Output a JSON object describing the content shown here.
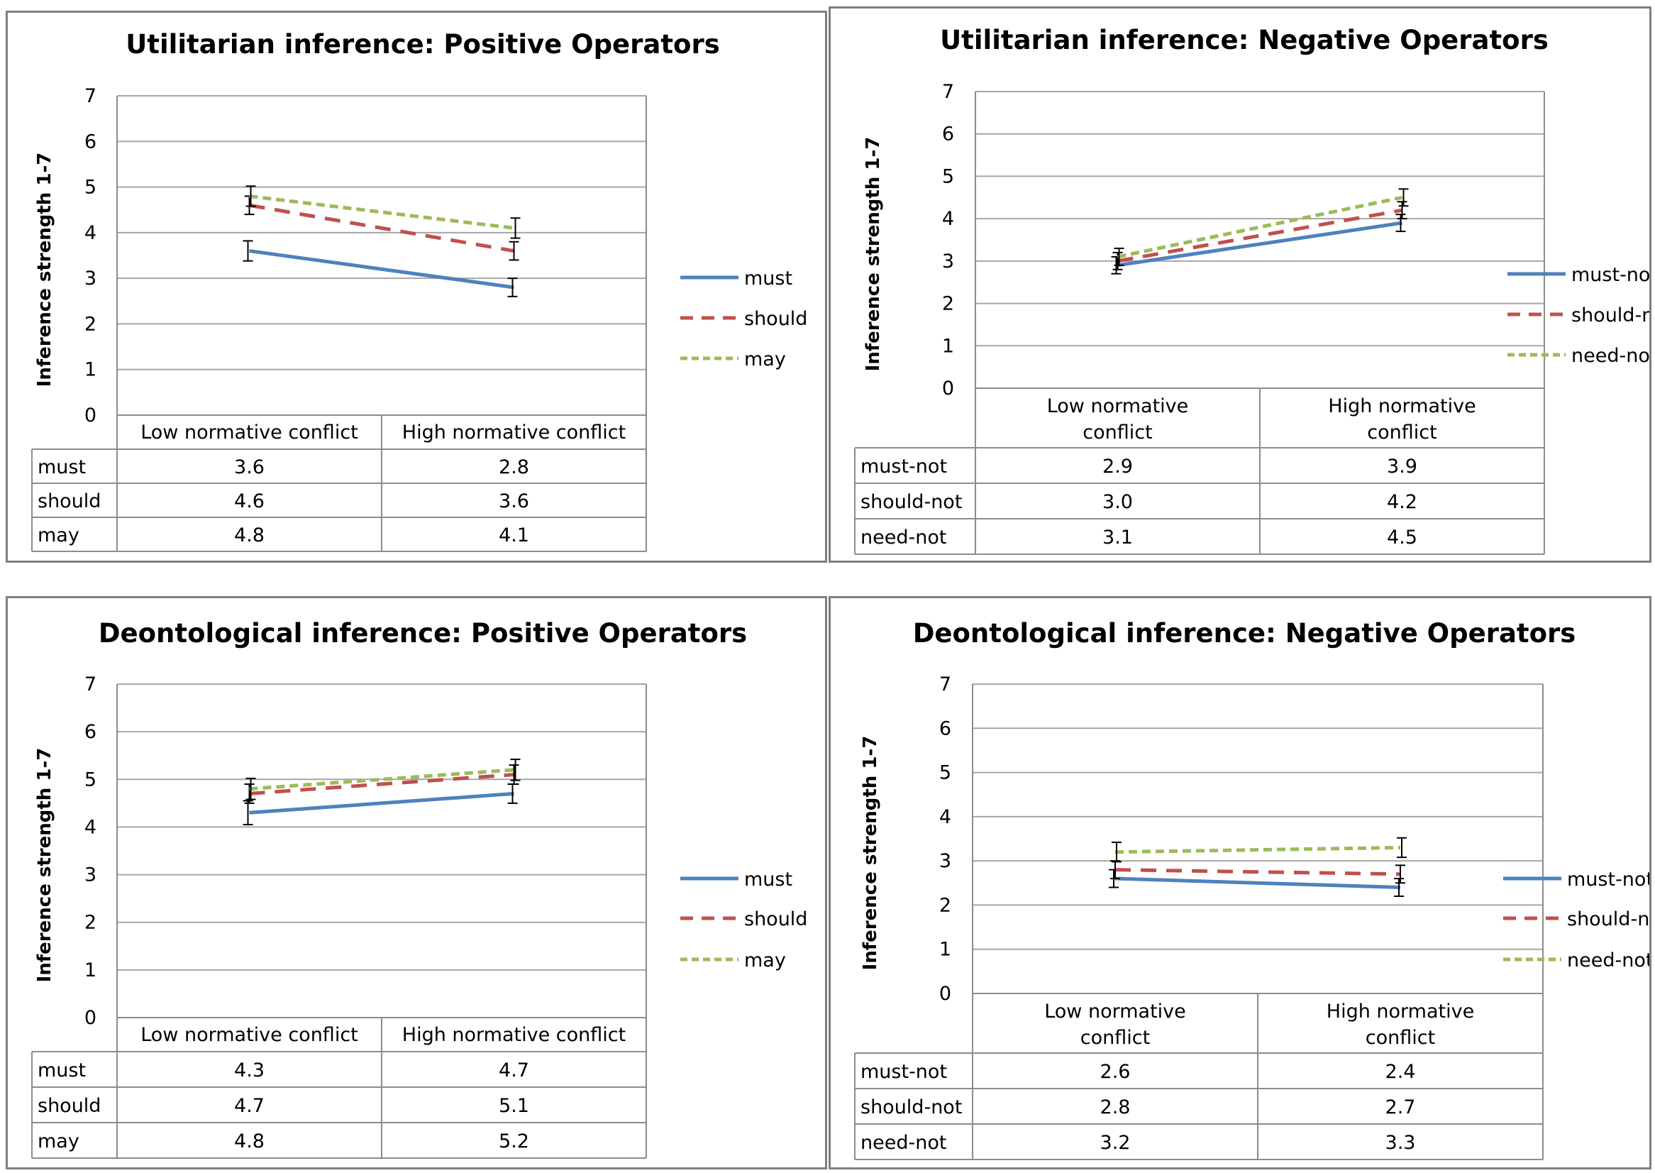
{
  "colors": {
    "series1": "#4f81bd",
    "series2": "#c0504d",
    "series3": "#9bbb59"
  },
  "chart_data": [
    {
      "type": "line",
      "title": "Utilitarian inference: Positive Operators",
      "ylabel": "Inference strength 1-7",
      "ylim": [
        0,
        7
      ],
      "yticks": [
        "0",
        "1",
        "2",
        "3",
        "4",
        "5",
        "6",
        "7"
      ],
      "categories": [
        "Low normative conflict",
        "High normative conflict"
      ],
      "series": [
        {
          "name": "must",
          "values": [
            3.6,
            2.8
          ],
          "labels": [
            "3.6",
            "2.8"
          ],
          "err": [
            0.22,
            0.2
          ]
        },
        {
          "name": "should",
          "values": [
            4.6,
            3.6
          ],
          "labels": [
            "4.6",
            "3.6"
          ],
          "err": [
            0.2,
            0.2
          ]
        },
        {
          "name": "may",
          "values": [
            4.8,
            4.1
          ],
          "labels": [
            "4.8",
            "4.1"
          ],
          "err": [
            0.22,
            0.22
          ]
        }
      ]
    },
    {
      "type": "line",
      "title": "Utilitarian inference: Negative Operators",
      "ylabel": "Inference strength 1-7",
      "ylim": [
        0,
        7
      ],
      "yticks": [
        "0",
        "1",
        "2",
        "3",
        "4",
        "5",
        "6",
        "7"
      ],
      "categories": [
        "Low normative conflict",
        "High normative conflict"
      ],
      "series": [
        {
          "name": "must-not",
          "values": [
            2.9,
            3.9
          ],
          "labels": [
            "2.9",
            "3.9"
          ],
          "err": [
            0.2,
            0.2
          ]
        },
        {
          "name": "should-not",
          "values": [
            3.0,
            4.2
          ],
          "labels": [
            "3.0",
            "4.2"
          ],
          "err": [
            0.2,
            0.2
          ]
        },
        {
          "name": "need-not",
          "values": [
            3.1,
            4.5
          ],
          "labels": [
            "3.1",
            "4.5"
          ],
          "err": [
            0.2,
            0.2
          ]
        }
      ]
    },
    {
      "type": "line",
      "title": "Deontological inference: Positive Operators",
      "ylabel": "Inference strength 1-7",
      "ylim": [
        0,
        7
      ],
      "yticks": [
        "0",
        "1",
        "2",
        "3",
        "4",
        "5",
        "6",
        "7"
      ],
      "categories": [
        "Low normative conflict",
        "High normative conflict"
      ],
      "series": [
        {
          "name": "must",
          "values": [
            4.3,
            4.7
          ],
          "labels": [
            "4.3",
            "4.7"
          ],
          "err": [
            0.25,
            0.2
          ]
        },
        {
          "name": "should",
          "values": [
            4.7,
            5.1
          ],
          "labels": [
            "4.7",
            "5.1"
          ],
          "err": [
            0.2,
            0.2
          ]
        },
        {
          "name": "may",
          "values": [
            4.8,
            5.2
          ],
          "labels": [
            "4.8",
            "5.2"
          ],
          "err": [
            0.22,
            0.22
          ]
        }
      ]
    },
    {
      "type": "line",
      "title": "Deontological inference: Negative Operators",
      "ylabel": "Inference strength 1-7",
      "ylim": [
        0,
        7
      ],
      "yticks": [
        "0",
        "1",
        "2",
        "3",
        "4",
        "5",
        "6",
        "7"
      ],
      "categories": [
        "Low normative conflict",
        "High normative conflict"
      ],
      "series": [
        {
          "name": "must-not",
          "values": [
            2.6,
            2.4
          ],
          "labels": [
            "2.6",
            "2.4"
          ],
          "err": [
            0.2,
            0.2
          ]
        },
        {
          "name": "should-not",
          "values": [
            2.8,
            2.7
          ],
          "labels": [
            "2.8",
            "2.7"
          ],
          "err": [
            0.2,
            0.2
          ]
        },
        {
          "name": "need-not",
          "values": [
            3.2,
            3.3
          ],
          "labels": [
            "3.2",
            "3.3"
          ],
          "err": [
            0.22,
            0.22
          ]
        }
      ]
    }
  ]
}
